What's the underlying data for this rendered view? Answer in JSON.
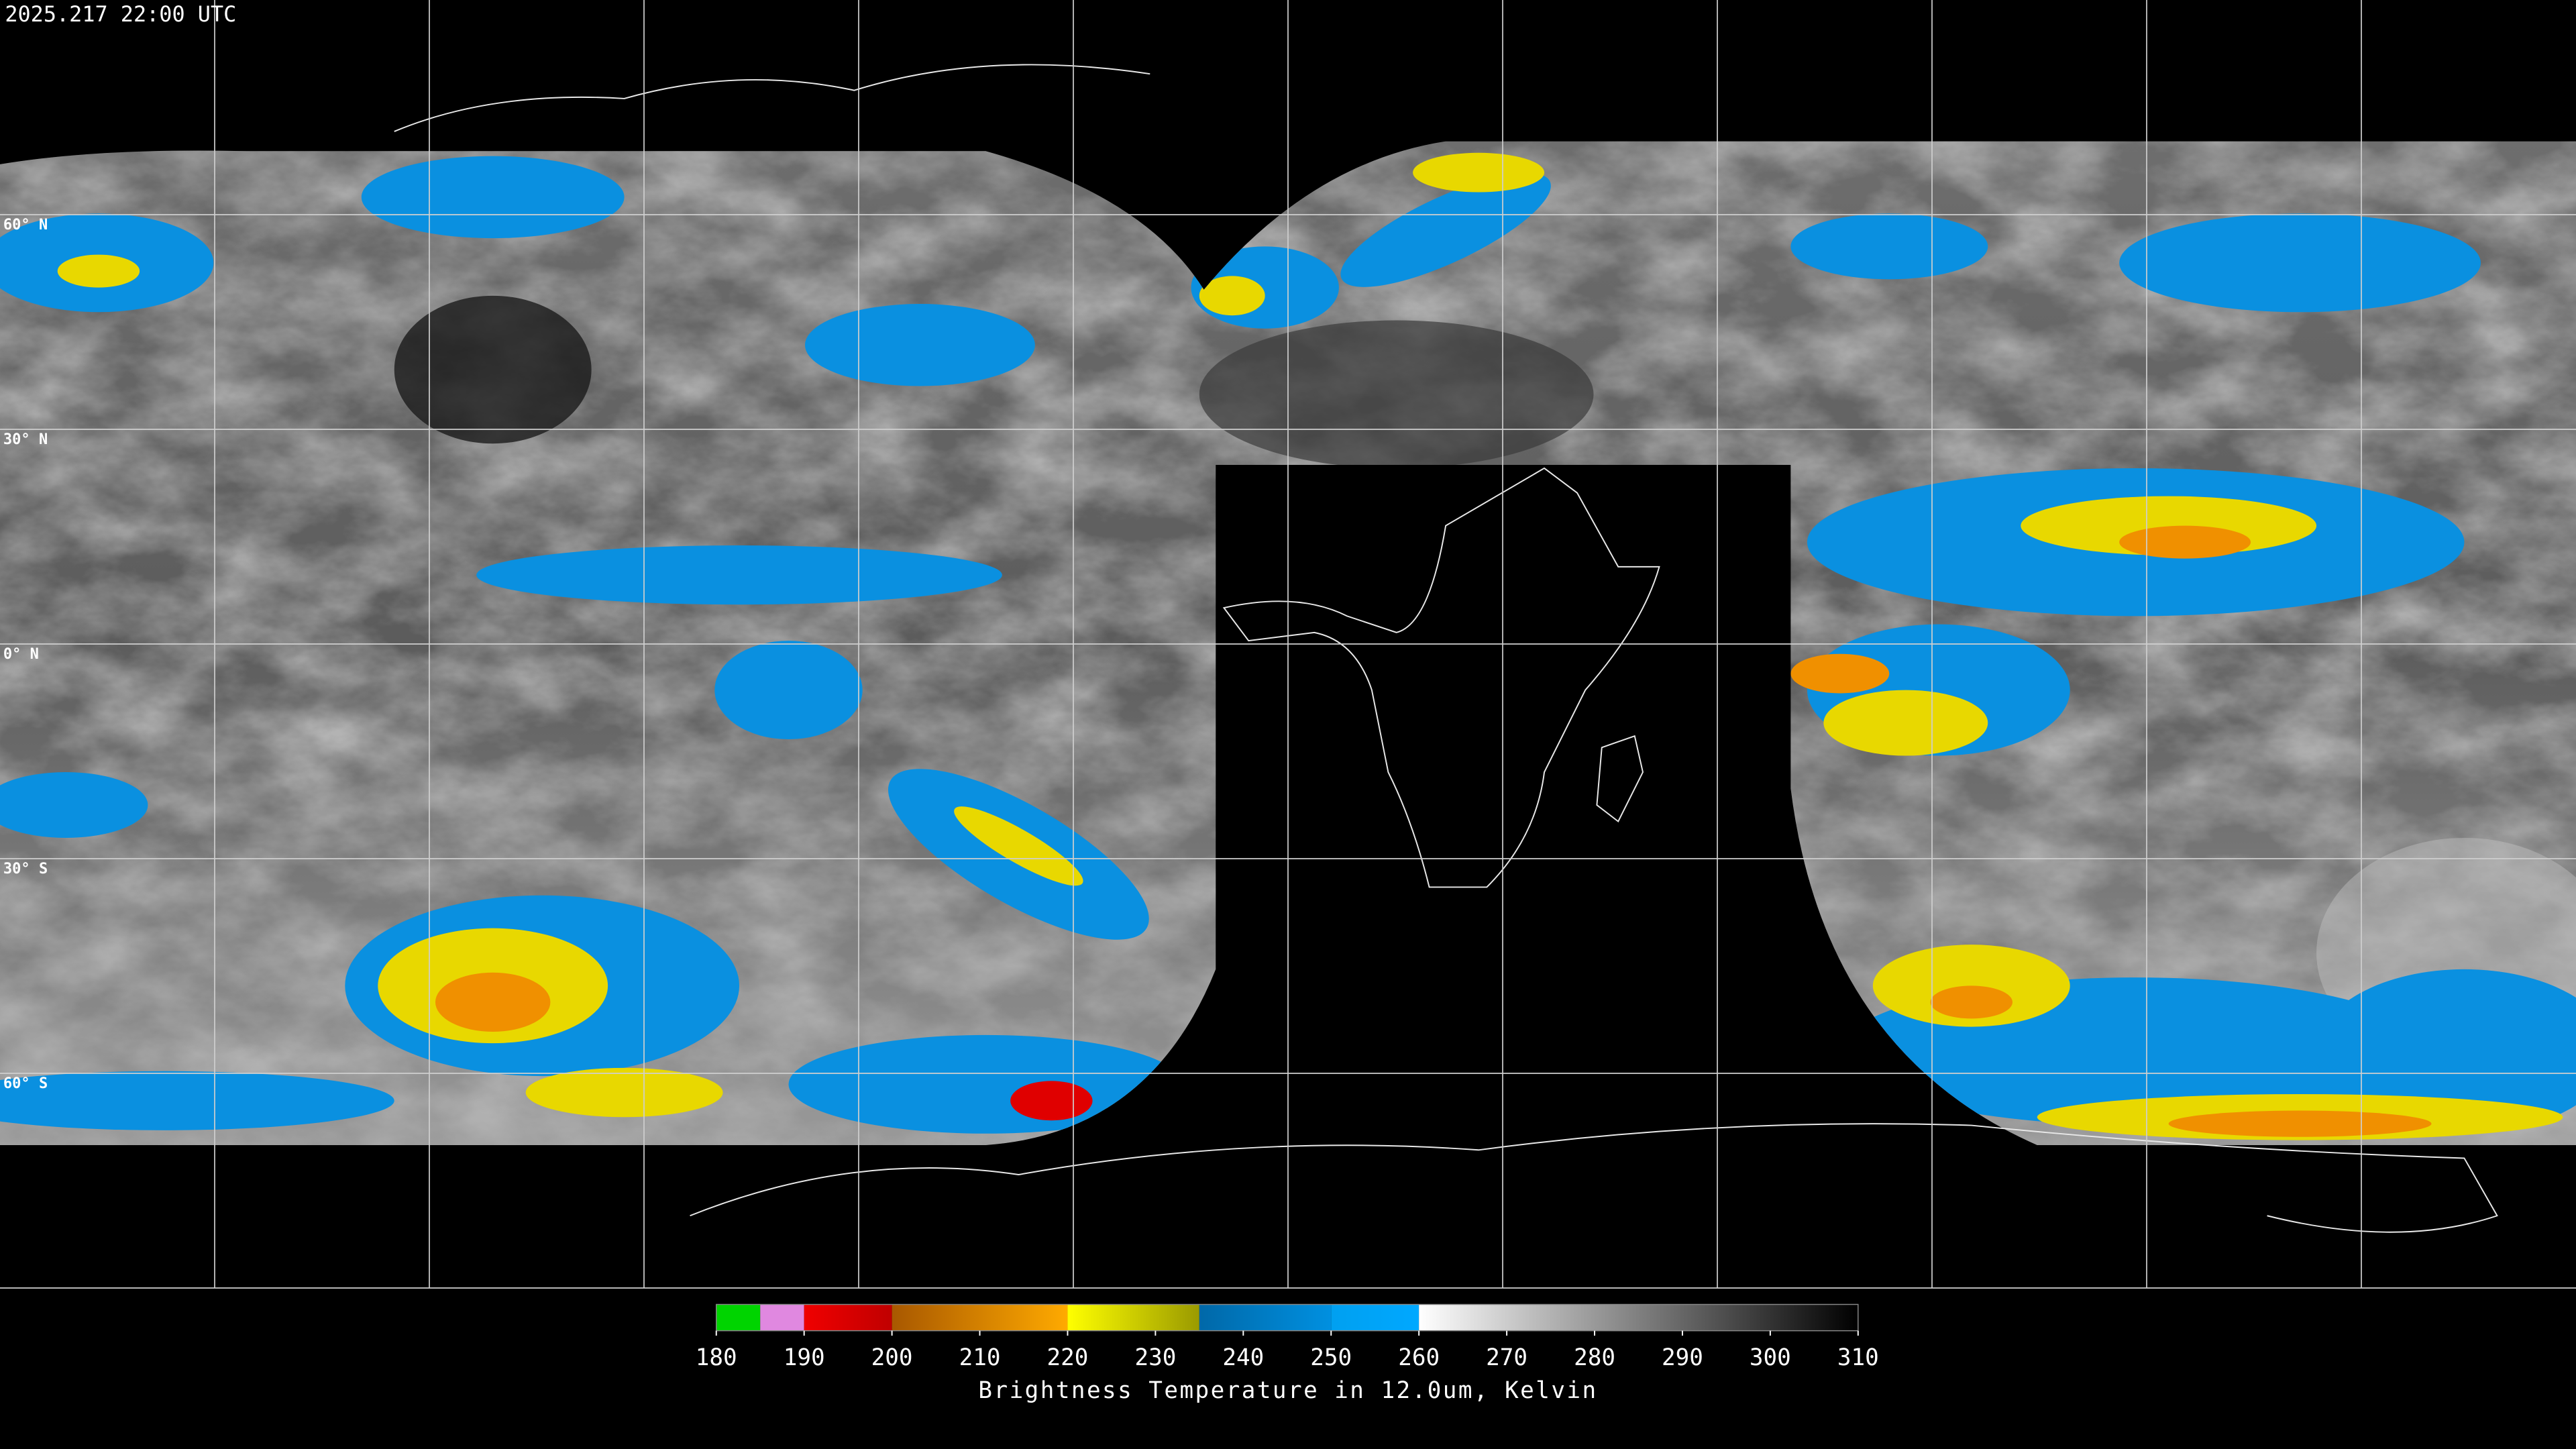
{
  "header": {
    "title": "2025.217 22:00 UTC"
  },
  "map": {
    "lat_labels": [
      "60° N",
      "30° N",
      "0° N",
      "30° S",
      "60° S"
    ]
  },
  "colorbar": {
    "range": [
      180,
      310
    ],
    "ticks": [
      180,
      190,
      200,
      210,
      220,
      230,
      240,
      250,
      260,
      270,
      280,
      290,
      300,
      310
    ],
    "label": "Brightness Temperature in 12.0um, Kelvin",
    "segments": [
      {
        "from": 180,
        "to": 185,
        "colors": [
          "#00d400",
          "#00d400"
        ]
      },
      {
        "from": 185,
        "to": 190,
        "colors": [
          "#e088e0",
          "#e088e0"
        ]
      },
      {
        "from": 190,
        "to": 200,
        "colors": [
          "#f00000",
          "#c00000"
        ]
      },
      {
        "from": 200,
        "to": 220,
        "colors": [
          "#a85800",
          "#ffaa00"
        ]
      },
      {
        "from": 220,
        "to": 235,
        "colors": [
          "#ffff00",
          "#9a9a00"
        ]
      },
      {
        "from": 235,
        "to": 250,
        "colors": [
          "#0068a8",
          "#0090e0"
        ]
      },
      {
        "from": 250,
        "to": 260,
        "colors": [
          "#00a0f0",
          "#00a8ff"
        ]
      },
      {
        "from": 260,
        "to": 310,
        "colors": [
          "#ffffff",
          "#000000"
        ]
      }
    ]
  }
}
